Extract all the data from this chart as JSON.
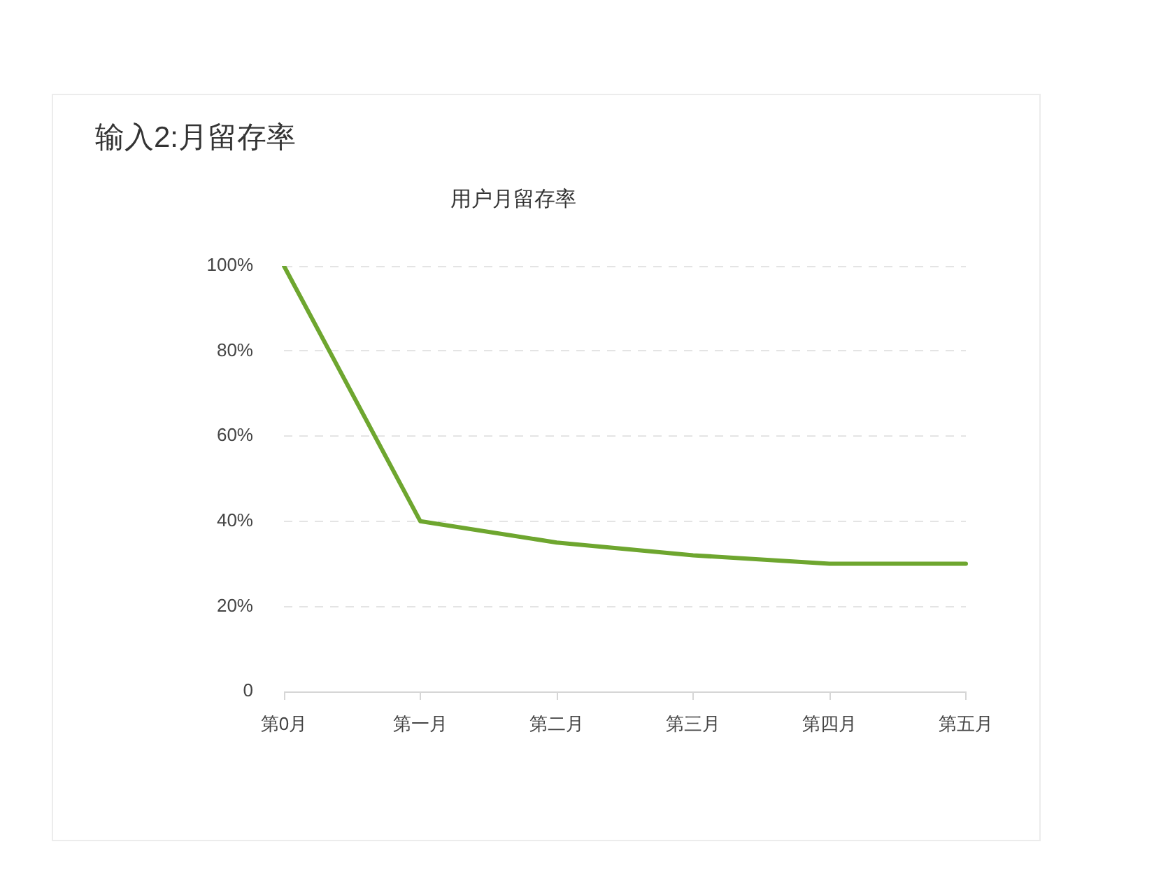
{
  "chart_data": {
    "type": "line",
    "title": "输入2:月留存率",
    "subtitle": "用户月留存率",
    "categories": [
      "第0月",
      "第一月",
      "第二月",
      "第三月",
      "第四月",
      "第五月"
    ],
    "series": [
      {
        "color": "#6ea62f",
        "values": [
          100,
          40,
          35,
          32,
          30,
          30
        ]
      }
    ],
    "ylim": [
      0,
      100
    ],
    "yticks": [
      0,
      {
        "value": 20,
        "label": "20%"
      },
      {
        "value": 40,
        "label": "40%"
      },
      {
        "value": 60,
        "label": "60%"
      },
      {
        "value": 80,
        "label": "80%"
      },
      {
        "value": 100,
        "label": "100%"
      }
    ],
    "grid": "y",
    "legend": false,
    "marker": "none",
    "line_style": "solid"
  }
}
